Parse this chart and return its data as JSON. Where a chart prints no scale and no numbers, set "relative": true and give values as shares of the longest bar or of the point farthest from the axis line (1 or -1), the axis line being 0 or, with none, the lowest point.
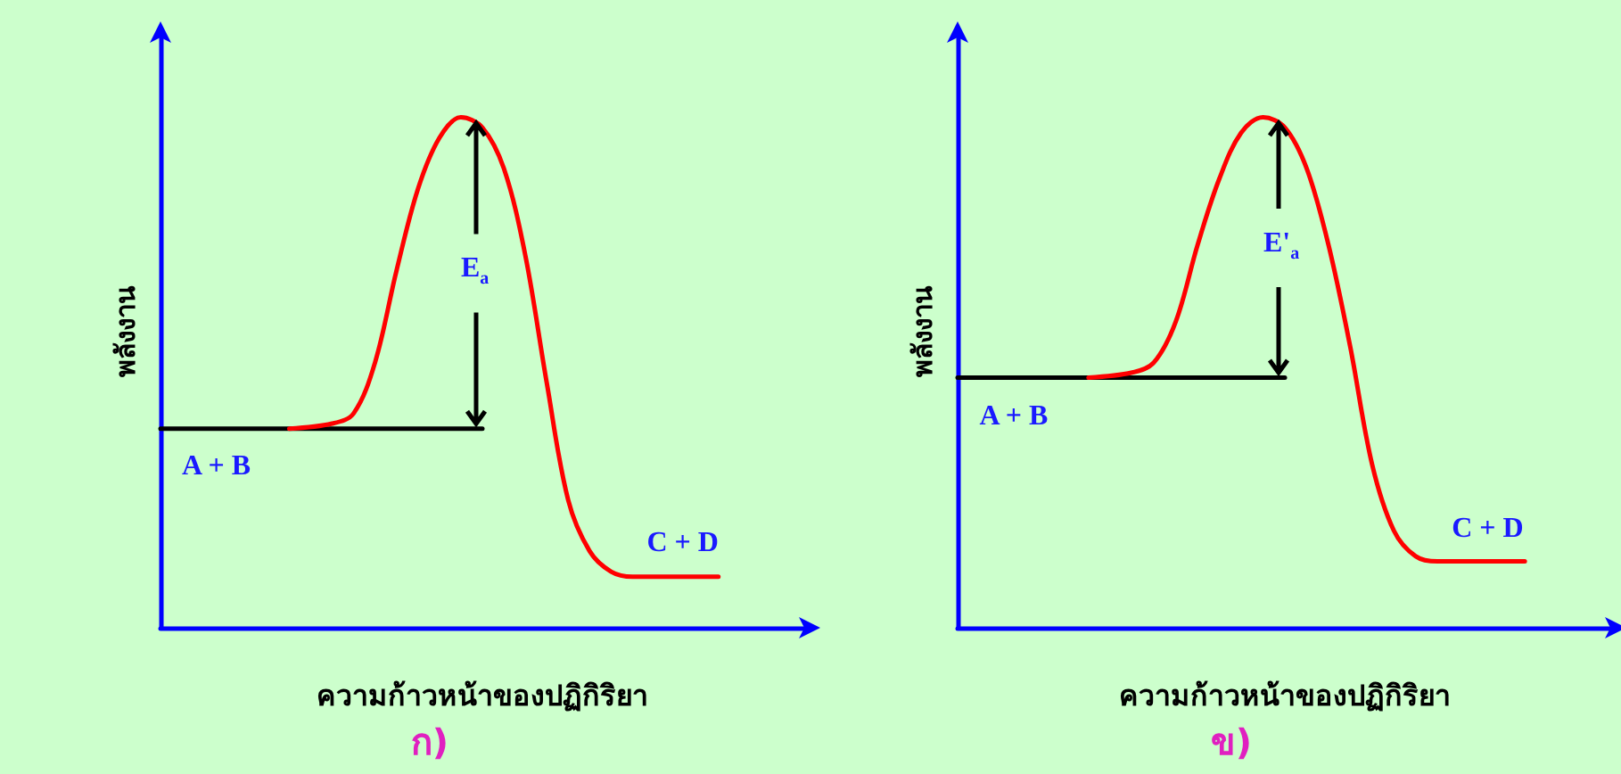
{
  "chart_data": [
    {
      "type": "line",
      "title": "ก)",
      "xlabel": "ความก้าวหน้าของปฏิกิริยา",
      "ylabel": "พลังงาน",
      "relative": true,
      "marker": "none",
      "line_style": "solid",
      "categories": [
        null,
        null,
        null,
        null,
        null,
        null,
        null,
        null,
        null,
        null,
        null,
        null,
        null,
        null,
        null,
        null,
        null,
        null,
        null,
        null,
        null,
        null,
        null,
        null,
        null,
        null,
        null,
        null,
        null,
        null,
        null
      ],
      "annotations": [
        "A + B",
        "E$_{a}$",
        "C + D"
      ],
      "series": [
        {
          "color": "#000000",
          "values": [
            0.39,
            0.39,
            0.39,
            0.39,
            0.39,
            0.39,
            0.39,
            0.39,
            0.39,
            0.39,
            0.39,
            0.39,
            0.39,
            0.39,
            0.39,
            0.39,
            null,
            null,
            null,
            null,
            null,
            null,
            null,
            null,
            null,
            null,
            null,
            null,
            null,
            null,
            null
          ]
        },
        {
          "color": "#ff0000",
          "values": [
            null,
            null,
            null,
            null,
            null,
            null,
            0.39,
            null,
            0.4,
            0.42,
            0.52,
            0.7,
            0.86,
            0.96,
            1.0,
            0.98,
            0.9,
            0.73,
            0.48,
            0.25,
            0.15,
            0.11,
            0.1,
            0.1,
            0.1,
            0.1,
            0.1,
            null,
            null,
            null,
            null
          ]
        }
      ]
    },
    {
      "type": "line",
      "title": "ข)",
      "xlabel": "ความก้าวหน้าของปฏิกิริยา",
      "ylabel": "พลังงาน",
      "relative": true,
      "marker": "none",
      "line_style": "solid",
      "categories": [
        null,
        null,
        null,
        null,
        null,
        null,
        null,
        null,
        null,
        null,
        null,
        null,
        null,
        null,
        null,
        null,
        null,
        null,
        null,
        null,
        null,
        null,
        null,
        null,
        null,
        null,
        null,
        null,
        null,
        null,
        null
      ],
      "annotations": [
        "A + B",
        "E'$_{a}$",
        "C + D"
      ],
      "series": [
        {
          "color": "#000000",
          "values": [
            0.49,
            0.49,
            0.49,
            0.49,
            0.49,
            0.49,
            0.49,
            0.49,
            0.49,
            0.49,
            0.49,
            0.49,
            0.49,
            0.49,
            0.49,
            0.49,
            null,
            null,
            null,
            null,
            null,
            null,
            null,
            null,
            null,
            null,
            null,
            null,
            null,
            null,
            null
          ]
        },
        {
          "color": "#ff0000",
          "values": [
            null,
            null,
            null,
            null,
            null,
            null,
            0.49,
            null,
            0.5,
            0.52,
            0.6,
            0.75,
            0.88,
            0.97,
            1.0,
            0.98,
            0.9,
            0.75,
            0.55,
            0.32,
            0.19,
            0.14,
            0.13,
            0.13,
            0.13,
            0.13,
            0.13,
            null,
            null,
            null,
            null
          ]
        }
      ]
    }
  ]
}
